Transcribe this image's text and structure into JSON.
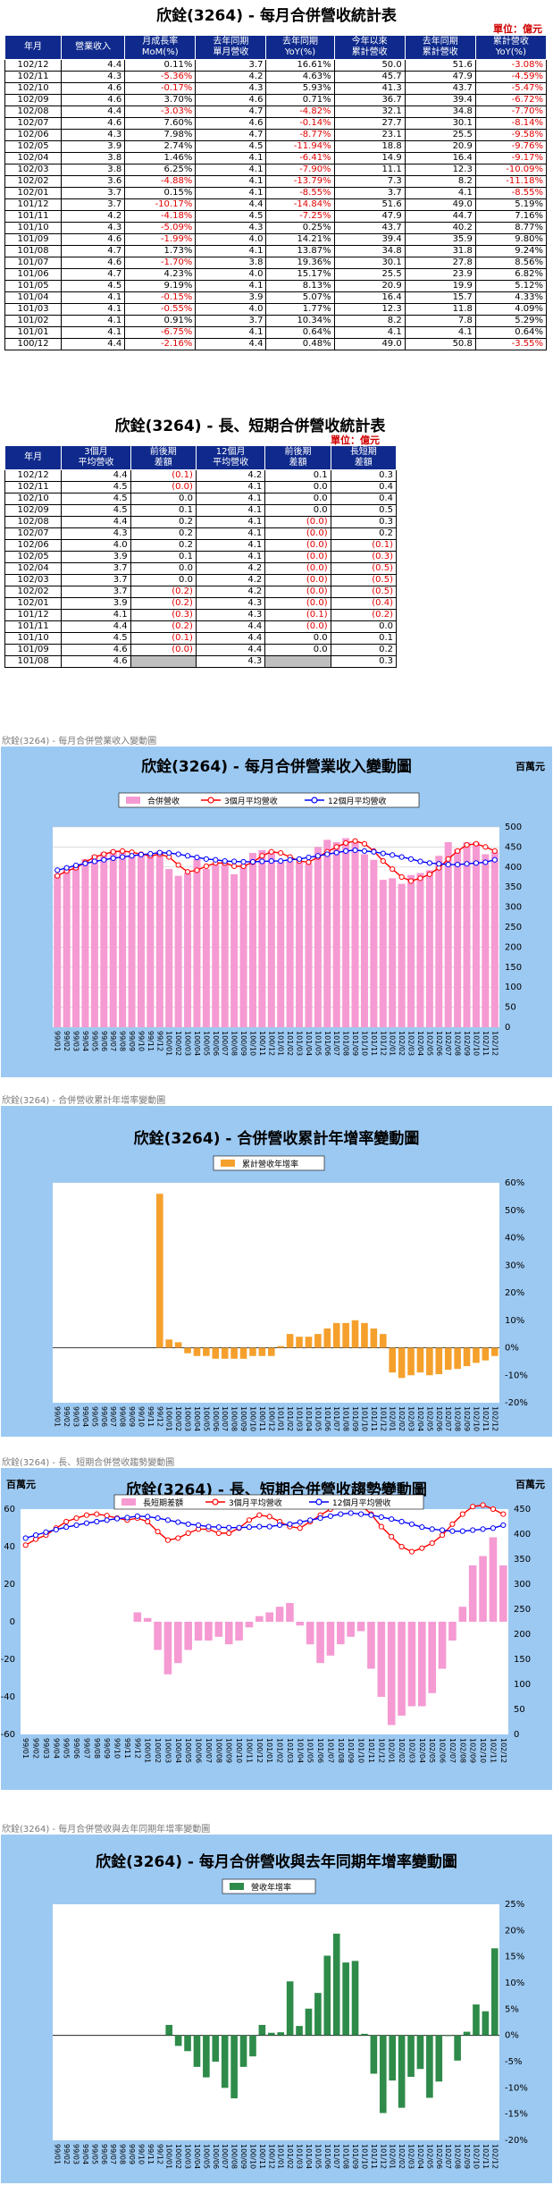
{
  "table1": {
    "title": "欣銓(3264) - 每月合併營收統計表",
    "unit": "單位：億元",
    "headers": [
      "年月",
      "營業收入",
      "月成長率 MoM(%)",
      "去年同期 單月營收",
      "去年同期 YoY(%)",
      "今年以來 累計營收",
      "去年同期 累計營收",
      "累計營收 YoY(%)"
    ],
    "rows": [
      [
        "102/12",
        "4.4",
        "0.11%",
        "3.7",
        "16.61%",
        "50.0",
        "51.6",
        "-3.08%"
      ],
      [
        "102/11",
        "4.3",
        "-5.36%",
        "4.2",
        "4.63%",
        "45.7",
        "47.9",
        "-4.59%"
      ],
      [
        "102/10",
        "4.6",
        "-0.17%",
        "4.3",
        "5.93%",
        "41.3",
        "43.7",
        "-5.47%"
      ],
      [
        "102/09",
        "4.6",
        "3.70%",
        "4.6",
        "0.71%",
        "36.7",
        "39.4",
        "-6.72%"
      ],
      [
        "102/08",
        "4.4",
        "-3.03%",
        "4.7",
        "-4.82%",
        "32.1",
        "34.8",
        "-7.70%"
      ],
      [
        "102/07",
        "4.6",
        "7.60%",
        "4.6",
        "-0.14%",
        "27.7",
        "30.1",
        "-8.14%"
      ],
      [
        "102/06",
        "4.3",
        "7.98%",
        "4.7",
        "-8.77%",
        "23.1",
        "25.5",
        "-9.58%"
      ],
      [
        "102/05",
        "3.9",
        "2.74%",
        "4.5",
        "-11.94%",
        "18.8",
        "20.9",
        "-9.76%"
      ],
      [
        "102/04",
        "3.8",
        "1.46%",
        "4.1",
        "-6.41%",
        "14.9",
        "16.4",
        "-9.17%"
      ],
      [
        "102/03",
        "3.8",
        "6.25%",
        "4.1",
        "-7.90%",
        "11.1",
        "12.3",
        "-10.09%"
      ],
      [
        "102/02",
        "3.6",
        "-4.88%",
        "4.1",
        "-13.79%",
        "7.3",
        "8.2",
        "-11.18%"
      ],
      [
        "102/01",
        "3.7",
        "0.15%",
        "4.1",
        "-8.55%",
        "3.7",
        "4.1",
        "-8.55%"
      ],
      [
        "101/12",
        "3.7",
        "-10.17%",
        "4.4",
        "-14.84%",
        "51.6",
        "49.0",
        "5.19%"
      ],
      [
        "101/11",
        "4.2",
        "-4.18%",
        "4.5",
        "-7.25%",
        "47.9",
        "44.7",
        "7.16%"
      ],
      [
        "101/10",
        "4.3",
        "-5.09%",
        "4.3",
        "0.25%",
        "43.7",
        "40.2",
        "8.77%"
      ],
      [
        "101/09",
        "4.6",
        "-1.99%",
        "4.0",
        "14.21%",
        "39.4",
        "35.9",
        "9.80%"
      ],
      [
        "101/08",
        "4.7",
        "1.73%",
        "4.1",
        "13.87%",
        "34.8",
        "31.8",
        "9.24%"
      ],
      [
        "101/07",
        "4.6",
        "-1.70%",
        "3.8",
        "19.36%",
        "30.1",
        "27.8",
        "8.56%"
      ],
      [
        "101/06",
        "4.7",
        "4.23%",
        "4.0",
        "15.17%",
        "25.5",
        "23.9",
        "6.82%"
      ],
      [
        "101/05",
        "4.5",
        "9.19%",
        "4.1",
        "8.13%",
        "20.9",
        "19.9",
        "5.12%"
      ],
      [
        "101/04",
        "4.1",
        "-0.15%",
        "3.9",
        "5.07%",
        "16.4",
        "15.7",
        "4.33%"
      ],
      [
        "101/03",
        "4.1",
        "-0.55%",
        "4.0",
        "1.77%",
        "12.3",
        "11.8",
        "4.09%"
      ],
      [
        "101/02",
        "4.1",
        "0.91%",
        "3.7",
        "10.34%",
        "8.2",
        "7.8",
        "5.29%"
      ],
      [
        "101/01",
        "4.1",
        "-6.75%",
        "4.1",
        "0.64%",
        "4.1",
        "4.1",
        "0.64%"
      ],
      [
        "100/12",
        "4.4",
        "-2.16%",
        "4.4",
        "0.48%",
        "49.0",
        "50.8",
        "-3.55%"
      ]
    ]
  },
  "table2": {
    "title": "欣銓(3264) - 長、短期合併營收統計表",
    "unit": "單位：億元",
    "headers": [
      "年月",
      "3個月 平均營收",
      "前後期 差額",
      "12個月 平均營收",
      "前後期 差額",
      "長短期 差額"
    ],
    "rows": [
      [
        "102/12",
        "4.4",
        "(0.1)",
        "4.2",
        "0.1",
        "0.3"
      ],
      [
        "102/11",
        "4.5",
        "(0.0)",
        "4.1",
        "0.0",
        "0.4"
      ],
      [
        "102/10",
        "4.5",
        "0.0",
        "4.1",
        "0.0",
        "0.4"
      ],
      [
        "102/09",
        "4.5",
        "0.1",
        "4.1",
        "0.0",
        "0.5"
      ],
      [
        "102/08",
        "4.4",
        "0.2",
        "4.1",
        "(0.0)",
        "0.3"
      ],
      [
        "102/07",
        "4.3",
        "0.2",
        "4.1",
        "(0.0)",
        "0.2"
      ],
      [
        "102/06",
        "4.0",
        "0.2",
        "4.1",
        "(0.0)",
        "(0.1)"
      ],
      [
        "102/05",
        "3.9",
        "0.1",
        "4.1",
        "(0.0)",
        "(0.3)"
      ],
      [
        "102/04",
        "3.7",
        "0.0",
        "4.2",
        "(0.0)",
        "(0.5)"
      ],
      [
        "102/03",
        "3.7",
        "0.0",
        "4.2",
        "(0.0)",
        "(0.5)"
      ],
      [
        "102/02",
        "3.7",
        "(0.2)",
        "4.2",
        "(0.0)",
        "(0.5)"
      ],
      [
        "102/01",
        "3.9",
        "(0.2)",
        "4.3",
        "(0.0)",
        "(0.4)"
      ],
      [
        "101/12",
        "4.1",
        "(0.3)",
        "4.3",
        "(0.1)",
        "(0.2)"
      ],
      [
        "101/11",
        "4.4",
        "(0.2)",
        "4.4",
        "(0.0)",
        "0.0"
      ],
      [
        "101/10",
        "4.5",
        "(0.1)",
        "4.4",
        "0.0",
        "0.1"
      ],
      [
        "101/09",
        "4.6",
        "(0.0)",
        "4.4",
        "0.0",
        "0.2"
      ],
      [
        "101/08",
        "4.6",
        "",
        "4.3",
        "",
        "0.3"
      ]
    ]
  },
  "x_labels": [
    "99/01",
    "99/02",
    "99/03",
    "99/04",
    "99/05",
    "99/06",
    "99/07",
    "99/08",
    "99/09",
    "99/10",
    "99/11",
    "99/12",
    "100/01",
    "100/02",
    "100/03",
    "100/04",
    "100/05",
    "100/06",
    "100/07",
    "100/08",
    "100/09",
    "100/10",
    "100/11",
    "100/12",
    "101/01",
    "101/02",
    "101/03",
    "101/04",
    "101/05",
    "101/06",
    "101/07",
    "101/08",
    "101/09",
    "101/10",
    "101/11",
    "101/12",
    "102/01",
    "102/02",
    "102/03",
    "102/04",
    "102/05",
    "102/06",
    "102/07",
    "102/08",
    "102/09",
    "102/10",
    "102/11",
    "102/12"
  ],
  "chart_data": [
    {
      "type": "bar",
      "caption": "欣銓(3264) - 每月合併營業收入變動圖",
      "title": "欣銓(3264) - 每月合併營業收入變動圖",
      "unit": "百萬元",
      "series": [
        {
          "name": "合併營收",
          "kind": "bar",
          "color": "#f59ad2",
          "values": [
            382,
            396,
            405,
            420,
            430,
            437,
            442,
            438,
            430,
            432,
            428,
            440,
            395,
            378,
            385,
            420,
            395,
            408,
            415,
            382,
            408,
            435,
            442,
            440,
            412,
            415,
            412,
            410,
            450,
            468,
            462,
            472,
            462,
            432,
            418,
            368,
            372,
            358,
            380,
            385,
            392,
            428,
            462,
            445,
            462,
            462,
            432,
            438
          ]
        },
        {
          "name": "3個月平均營收",
          "kind": "line",
          "color": "#ff0000",
          "values": [
            378,
            390,
            398,
            412,
            425,
            432,
            438,
            440,
            437,
            432,
            428,
            432,
            425,
            405,
            388,
            392,
            402,
            410,
            410,
            402,
            402,
            412,
            428,
            438,
            435,
            425,
            415,
            412,
            425,
            438,
            450,
            460,
            465,
            458,
            440,
            415,
            395,
            375,
            365,
            372,
            382,
            398,
            420,
            440,
            455,
            458,
            450,
            440
          ]
        },
        {
          "name": "12個月平均營收",
          "kind": "line",
          "color": "#0000ff",
          "values": [
            392,
            398,
            404,
            409,
            414,
            418,
            422,
            425,
            428,
            431,
            433,
            436,
            435,
            432,
            428,
            424,
            420,
            418,
            415,
            414,
            413,
            413,
            414,
            415,
            415,
            418,
            420,
            424,
            428,
            432,
            436,
            440,
            442,
            440,
            438,
            434,
            430,
            425,
            420,
            414,
            410,
            408,
            406,
            406,
            408,
            410,
            412,
            418
          ]
        }
      ],
      "ylim": [
        0,
        500
      ],
      "yticks": [
        0,
        50,
        100,
        150,
        200,
        250,
        300,
        350,
        400,
        450,
        500
      ],
      "legend_placement": "top"
    },
    {
      "type": "bar",
      "caption": "欣銓(3264) - 合併營收累計年增率變動圖",
      "title": "欣銓(3264) - 合併營收累計年增率變動圖",
      "series": [
        {
          "name": "累計營收年增率",
          "kind": "bar",
          "color": "#f5a02c",
          "values": [
            null,
            null,
            null,
            null,
            null,
            null,
            null,
            null,
            null,
            null,
            null,
            56,
            3,
            2,
            -2,
            -3,
            -3,
            -4,
            -4,
            -4,
            -4,
            -3,
            -3,
            -3,
            0.6,
            5,
            4,
            4,
            5,
            7,
            9,
            9,
            10,
            9,
            7,
            5,
            -9,
            -11,
            -10,
            -9,
            -10,
            -9.6,
            -8,
            -7.7,
            -6.7,
            -5.5,
            -4.6,
            -3
          ]
        }
      ],
      "ylim": [
        -20,
        60
      ],
      "yticks": [
        -20,
        -10,
        0,
        10,
        20,
        30,
        40,
        50,
        60
      ],
      "tick_suffix": "%",
      "legend_placement": "top"
    },
    {
      "type": "bar",
      "caption": "欣銓(3264) - 長、短期合併營收趨勢變動圖",
      "title": "欣銓(3264) - 長、短期合併營收趨勢變動圖",
      "unit_left": "百萬元",
      "unit_right": "百萬元",
      "series": [
        {
          "name": "長短期差額",
          "kind": "bar",
          "axis": "left",
          "color": "#f59ad2",
          "values": [
            null,
            null,
            null,
            null,
            null,
            null,
            null,
            null,
            null,
            null,
            null,
            5,
            2,
            -15,
            -28,
            -22,
            -15,
            -10,
            -10,
            -8,
            -12,
            -10,
            -3,
            3,
            5,
            8,
            10,
            -2,
            -12,
            -22,
            -18,
            -12,
            -8,
            -5,
            -25,
            -40,
            -55,
            -50,
            -45,
            -45,
            -38,
            -25,
            -10,
            8,
            30,
            35,
            45,
            30
          ]
        },
        {
          "name": "3個月平均營收",
          "kind": "line",
          "axis": "right",
          "color": "#ff0000",
          "values": [
            378,
            390,
            398,
            412,
            425,
            432,
            438,
            440,
            437,
            432,
            428,
            432,
            425,
            405,
            388,
            392,
            402,
            410,
            410,
            402,
            402,
            412,
            428,
            438,
            435,
            425,
            415,
            412,
            425,
            438,
            450,
            460,
            465,
            458,
            440,
            415,
            395,
            375,
            365,
            372,
            382,
            398,
            420,
            440,
            455,
            458,
            450,
            440
          ]
        },
        {
          "name": "12個月平均營收",
          "kind": "line",
          "axis": "right",
          "color": "#0000ff",
          "values": [
            392,
            398,
            404,
            409,
            414,
            418,
            422,
            425,
            428,
            431,
            433,
            436,
            435,
            432,
            428,
            424,
            420,
            418,
            415,
            414,
            413,
            413,
            414,
            415,
            415,
            418,
            420,
            424,
            428,
            432,
            436,
            440,
            442,
            440,
            438,
            434,
            430,
            425,
            420,
            414,
            410,
            408,
            406,
            406,
            408,
            410,
            412,
            418
          ]
        }
      ],
      "ylim_left": [
        -60,
        60
      ],
      "yticks_left": [
        -60,
        -40,
        -20,
        0,
        20,
        40,
        60
      ],
      "ylim_right": [
        0,
        450
      ],
      "yticks_right": [
        0,
        50,
        100,
        150,
        200,
        250,
        300,
        350,
        400,
        450
      ],
      "legend_placement": "top"
    },
    {
      "type": "bar",
      "caption": "欣銓(3264) - 每月合併營收與去年同期年增率變動圖",
      "title": "欣銓(3264) - 每月合併營收與去年同期年增率變動圖",
      "series": [
        {
          "name": "營收年增率",
          "kind": "bar",
          "color": "#2e8b4a",
          "values": [
            null,
            null,
            null,
            null,
            null,
            null,
            null,
            null,
            null,
            null,
            null,
            null,
            2,
            -2,
            -3,
            -6,
            -8,
            -5,
            -10,
            -12,
            -6,
            -4,
            2,
            0.5,
            0.6,
            10.3,
            1.8,
            5.1,
            8.1,
            15.2,
            19.4,
            13.9,
            14.2,
            0.3,
            -7.3,
            -14.8,
            -8.6,
            -13.8,
            -7.9,
            -6.4,
            -11.9,
            -8.8,
            -0.1,
            -4.8,
            0.7,
            5.9,
            4.6,
            16.6
          ]
        }
      ],
      "ylim": [
        -20,
        25
      ],
      "yticks": [
        -20,
        -15,
        -10,
        -5,
        0,
        5,
        10,
        15,
        20,
        25
      ],
      "tick_suffix": "%",
      "legend_placement": "top"
    }
  ]
}
